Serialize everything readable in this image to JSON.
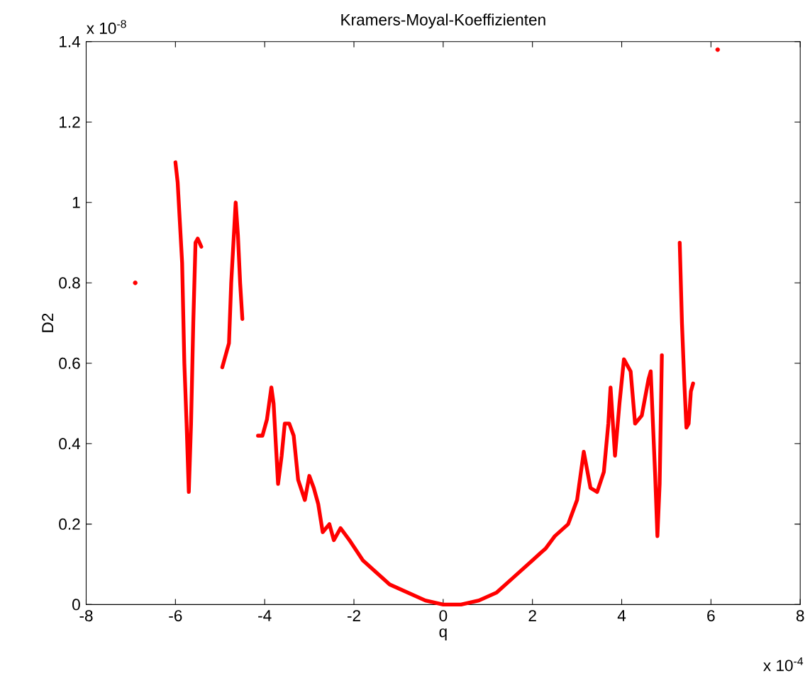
{
  "chart_data": {
    "type": "line",
    "title": "Kramers-Moyal-Koeffizienten",
    "xlabel": "q",
    "ylabel": "D2",
    "annotations": [
      "x 10$^{-8}$",
      "x 10$^{-4}$"
    ],
    "xlim": [
      -8,
      8
    ],
    "ylim": [
      0,
      1.4
    ],
    "xticks": [
      -8,
      -6,
      -4,
      -2,
      0,
      2,
      4,
      6,
      8
    ],
    "yticks": [
      0,
      0.2,
      0.4,
      0.6,
      0.8,
      1,
      1.2,
      1.4
    ],
    "grid": false,
    "series": [
      {
        "color": "#ff0000",
        "x": [
          -6.0,
          -5.95,
          -5.9,
          -5.85,
          -5.8,
          -5.75,
          -5.7,
          -5.65,
          -5.6,
          -5.55,
          -5.5,
          -5.42,
          null,
          -4.95,
          -4.85,
          -4.8,
          -4.75,
          -4.7,
          -4.65,
          -4.6,
          -4.55,
          -4.5,
          null,
          -4.15,
          -4.05,
          -3.95,
          -3.85,
          -3.8,
          -3.7,
          -3.62,
          -3.55,
          -3.45,
          -3.35,
          -3.25,
          -3.1,
          -3.0,
          -2.9,
          -2.8,
          -2.7,
          -2.55,
          -2.45,
          -2.3,
          -2.1,
          -1.8,
          -1.5,
          -1.2,
          -0.8,
          -0.4,
          0,
          0.4,
          0.8,
          1.2,
          1.6,
          2.0,
          2.3,
          2.5,
          2.8,
          3.0,
          3.15,
          3.3,
          3.45,
          3.6,
          3.7,
          3.75,
          3.85,
          3.95,
          4.05,
          4.2,
          4.3,
          4.45,
          4.6,
          4.65,
          4.7,
          4.75,
          4.8,
          4.85,
          4.9,
          null,
          5.3,
          5.35,
          5.4,
          5.45,
          5.5,
          5.55,
          5.6
        ],
        "values": [
          1.1,
          1.05,
          0.95,
          0.85,
          0.6,
          0.45,
          0.28,
          0.45,
          0.7,
          0.9,
          0.91,
          0.89,
          null,
          0.59,
          0.63,
          0.65,
          0.8,
          0.9,
          1.0,
          0.92,
          0.8,
          0.71,
          null,
          0.42,
          0.42,
          0.46,
          0.54,
          0.5,
          0.3,
          0.37,
          0.45,
          0.45,
          0.42,
          0.31,
          0.26,
          0.32,
          0.29,
          0.25,
          0.18,
          0.2,
          0.16,
          0.19,
          0.16,
          0.11,
          0.08,
          0.05,
          0.03,
          0.01,
          0,
          0,
          0.01,
          0.03,
          0.07,
          0.11,
          0.14,
          0.17,
          0.2,
          0.26,
          0.38,
          0.29,
          0.28,
          0.33,
          0.45,
          0.54,
          0.37,
          0.5,
          0.61,
          0.58,
          0.45,
          0.47,
          0.56,
          0.58,
          0.45,
          0.32,
          0.17,
          0.3,
          0.62,
          null,
          0.9,
          0.7,
          0.56,
          0.44,
          0.45,
          0.53,
          0.55
        ]
      },
      {
        "type": "scatter",
        "color": "#ff0000",
        "x": [
          -6.9,
          6.15
        ],
        "values": [
          0.8,
          1.38
        ]
      }
    ]
  }
}
